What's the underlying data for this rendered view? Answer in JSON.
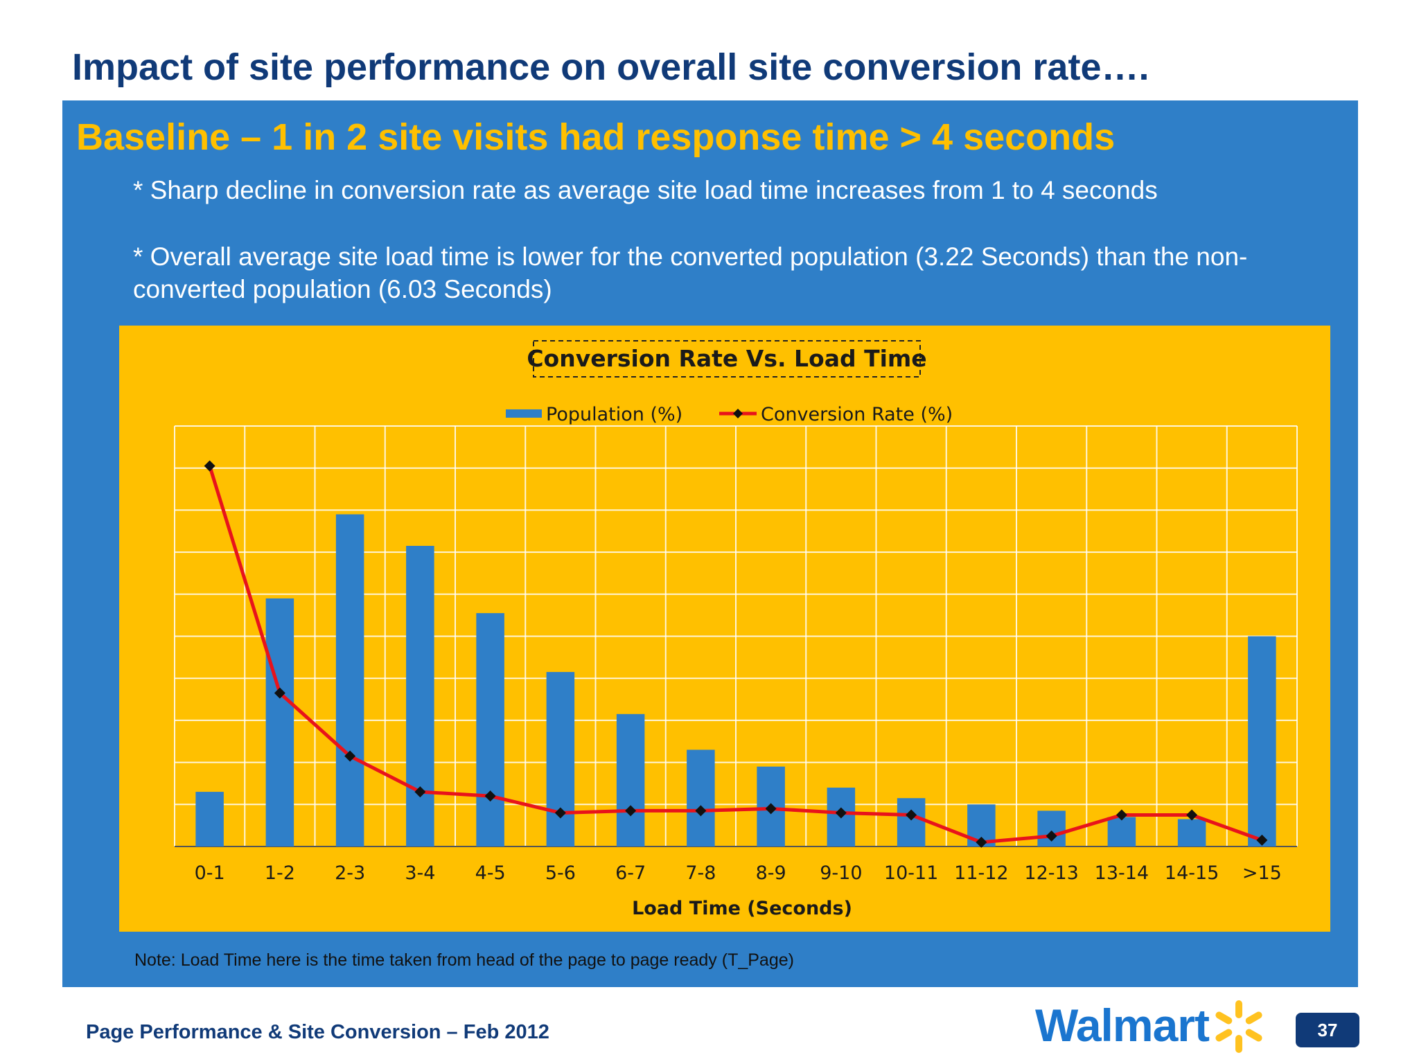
{
  "slide": {
    "title": "Impact of site performance on overall site conversion rate….",
    "baseline": "Baseline – 1 in 2 site visits had response time > 4 seconds",
    "bullets": [
      "* Sharp decline in conversion rate as average site load time increases from 1 to 4 seconds",
      "* Overall average site load time is lower for the converted population (3.22 Seconds) than the non-converted population (6.03 Seconds)"
    ],
    "note": "Note: Load Time here is the time taken from head of the page to page ready (T_Page)",
    "footer": "Page Performance & Site Conversion – Feb 2012",
    "brand": "Walmart",
    "page_number": "37"
  },
  "colors": {
    "panel": "#2f7fc8",
    "chart_background": "#ffc000",
    "bars": "#2f7fc8",
    "line": "#e8131b",
    "title_text": "#103a78",
    "baseline_text": "#ffc000"
  },
  "chart_data": {
    "type": "bar",
    "title": "Conversion Rate Vs. Load Time",
    "xlabel": "Load Time (Seconds)",
    "ylabel": "",
    "grid": true,
    "legend_position": "top",
    "categories": [
      "0-1",
      "1-2",
      "2-3",
      "3-4",
      "4-5",
      "5-6",
      "6-7",
      "7-8",
      "8-9",
      "9-10",
      "10-11",
      "11-12",
      "12-13",
      "13-14",
      "14-15",
      ">15"
    ],
    "ylim": [
      0,
      10
    ],
    "series": [
      {
        "name": "Population (%)",
        "type": "bar",
        "values": [
          1.3,
          5.9,
          7.9,
          7.15,
          5.55,
          4.15,
          3.15,
          2.3,
          1.9,
          1.4,
          1.15,
          1.0,
          0.85,
          0.7,
          0.65,
          5.0
        ]
      },
      {
        "name": "Conversion Rate (%)",
        "type": "line",
        "values": [
          9.05,
          3.65,
          2.15,
          1.3,
          1.2,
          0.8,
          0.85,
          0.85,
          0.9,
          0.8,
          0.75,
          0.1,
          0.25,
          0.75,
          0.75,
          0.15
        ]
      }
    ]
  }
}
